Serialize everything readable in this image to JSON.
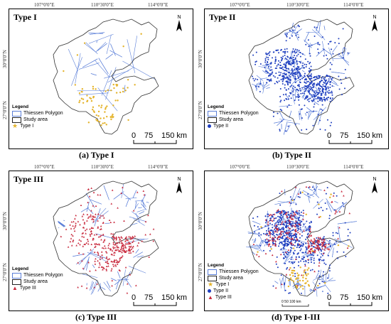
{
  "coords": {
    "top": [
      "107°0'0\"E",
      "110°30'0\"E",
      "114°0'0\"E"
    ],
    "left": [
      "30°0'0\"N",
      "27°0'0\"N"
    ]
  },
  "legend": {
    "title": "Legend",
    "thiessen": "Thiessen Polygon",
    "study_area": "Study area"
  },
  "north": "N",
  "scale": {
    "v0": "0",
    "v1": "75",
    "v2": "150 km"
  },
  "inset_scale": "0    50   100 km",
  "colors": {
    "type1": "#e4b32a",
    "type2": "#1f3fbf",
    "type3": "#c8283c",
    "polygon": "#5b7fd8"
  },
  "panels": [
    {
      "title": "Type I",
      "caption": "(a) Type I",
      "legend_items": [
        "Type I"
      ]
    },
    {
      "title": "Type II",
      "caption": "(b) Type II",
      "legend_items": [
        "Type II"
      ]
    },
    {
      "title": "Type III",
      "caption": "(c) Type III",
      "legend_items": [
        "Type III"
      ]
    },
    {
      "title": "",
      "caption": "(d) Type I-III",
      "legend_items": [
        "Type I",
        "Type II",
        "Type III"
      ]
    }
  ]
}
